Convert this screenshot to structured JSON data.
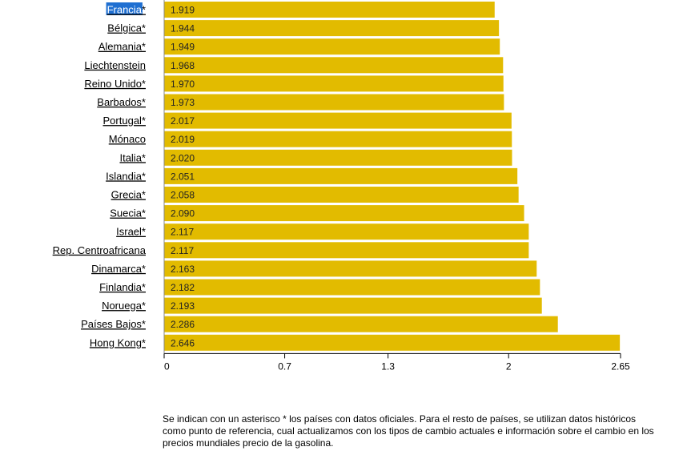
{
  "chart_data": {
    "type": "bar",
    "orientation": "horizontal",
    "categories": [
      "Francia*",
      "Bélgica*",
      "Alemania*",
      "Liechtenstein ",
      "Reino Unido*",
      "Barbados*",
      "Portugal*",
      "Mónaco ",
      "Italia*",
      "Islandia*",
      "Grecia*",
      "Suecia*",
      "Israel*",
      "Rep. Centroafricana ",
      "Dinamarca*",
      "Finlandia*",
      "Noruega*",
      "Países Bajos*",
      "Hong Kong*"
    ],
    "value_labels": [
      "1.919",
      "1.944",
      "1.949",
      "1.968",
      "1.970",
      "1.973",
      "2.017",
      "2.019",
      "2.020",
      "2.051",
      "2.058",
      "2.090",
      "2.117",
      "2.117",
      "2.163",
      "2.182",
      "2.193",
      "2.286",
      "2.646"
    ],
    "values": [
      1.919,
      1.944,
      1.949,
      1.968,
      1.97,
      1.973,
      2.017,
      2.019,
      2.02,
      2.051,
      2.058,
      2.09,
      2.117,
      2.117,
      2.163,
      2.182,
      2.193,
      2.286,
      2.646
    ],
    "xlim": [
      0,
      2.65
    ],
    "xticks": [
      0,
      0.7,
      1.3,
      2,
      2.65
    ],
    "xtick_labels": [
      "0",
      "0.7",
      "1.3",
      "2",
      "2.65"
    ],
    "bar_color": "#e2bb00",
    "selected_category": "Francia",
    "selected_highlight_color": "#1f6fd1",
    "grid": false
  },
  "note": "Se indican con un asterisco * los países con datos oficiales. Para el resto de países, se utilizan datos históricos como punto de referencia, cual actualizamos con los tipos de cambio actuales e información sobre el cambio en los precios mundiales precio de la gasolina."
}
